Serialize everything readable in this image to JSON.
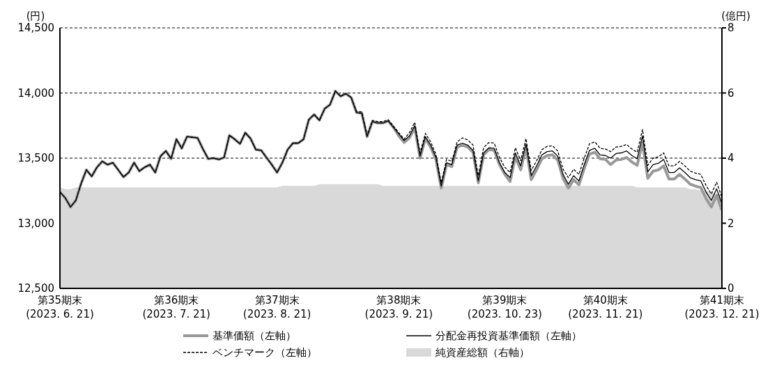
{
  "chart_data": {
    "type": "line",
    "ylabel": "(円)",
    "y2label": "(億円)",
    "categories": [
      "第35期末\n(2023. 6. 21)",
      null,
      null,
      null,
      null,
      null,
      null,
      null,
      null,
      null,
      null,
      null,
      null,
      null,
      null,
      null,
      null,
      null,
      null,
      null,
      null,
      null,
      "第36期末\n(2023. 7. 21)",
      null,
      null,
      null,
      null,
      null,
      null,
      null,
      null,
      null,
      null,
      null,
      null,
      null,
      null,
      null,
      null,
      null,
      null,
      "第37期末\n(2023. 8. 21)",
      null,
      null,
      null,
      null,
      null,
      null,
      null,
      null,
      null,
      null,
      null,
      null,
      null,
      null,
      null,
      null,
      null,
      null,
      null,
      null,
      null,
      null,
      "第38期末\n(2023. 9. 21)",
      null,
      null,
      null,
      null,
      null,
      null,
      null,
      null,
      null,
      null,
      null,
      null,
      null,
      null,
      null,
      null,
      null,
      null,
      null,
      "第39期末\n(2023. 10. 23)",
      null,
      null,
      null,
      null,
      null,
      null,
      null,
      null,
      null,
      null,
      null,
      null,
      null,
      null,
      null,
      null,
      null,
      null,
      "第40期末\n(2023. 11. 21)",
      null,
      null,
      null,
      null,
      null,
      null,
      null,
      null,
      null,
      null,
      null,
      null,
      null,
      null,
      null,
      null,
      null,
      null,
      null,
      null,
      null,
      "第41期末\n(2023. 12. 21)"
    ],
    "series": [
      {
        "name": "基準価額（左軸）",
        "type": "line",
        "color": "#999999",
        "values": [
          13240,
          13195,
          13125,
          13175,
          13305,
          13410,
          13360,
          13430,
          13475,
          13450,
          13465,
          13410,
          13355,
          13390,
          13465,
          13400,
          13430,
          13450,
          13390,
          13515,
          13555,
          13495,
          13645,
          13575,
          13665,
          13660,
          13655,
          13570,
          13495,
          13500,
          13490,
          13505,
          13675,
          13645,
          13610,
          13695,
          13650,
          13565,
          13560,
          13505,
          13450,
          13390,
          13465,
          13565,
          13615,
          13615,
          13645,
          13795,
          13835,
          13790,
          13880,
          13910,
          14015,
          13975,
          13995,
          13965,
          13850,
          13845,
          13665,
          13780,
          13770,
          13770,
          13785,
          13735,
          13670,
          13620,
          13655,
          13735,
          13500,
          13650,
          13585,
          13490,
          13270,
          13450,
          13435,
          13585,
          13600,
          13585,
          13545,
          13310,
          13525,
          13565,
          13560,
          13450,
          13375,
          13320,
          13510,
          13410,
          13580,
          13335,
          13410,
          13495,
          13520,
          13525,
          13485,
          13345,
          13270,
          13335,
          13295,
          13420,
          13530,
          13545,
          13495,
          13490,
          13450,
          13485,
          13490,
          13505,
          13470,
          13445,
          13620,
          13345,
          13400,
          13410,
          13440,
          13340,
          13340,
          13375,
          13340,
          13300,
          13285,
          13275,
          13190,
          13125,
          13215,
          13100
        ]
      },
      {
        "name": "分配金再投資基準価額（左軸）",
        "type": "line",
        "color": "#000000",
        "values": [
          13240,
          13195,
          13125,
          13175,
          13305,
          13410,
          13360,
          13430,
          13475,
          13450,
          13465,
          13410,
          13355,
          13390,
          13465,
          13400,
          13430,
          13450,
          13390,
          13515,
          13555,
          13495,
          13645,
          13575,
          13665,
          13660,
          13655,
          13570,
          13495,
          13500,
          13490,
          13505,
          13675,
          13645,
          13610,
          13695,
          13650,
          13565,
          13560,
          13505,
          13450,
          13390,
          13465,
          13565,
          13615,
          13615,
          13645,
          13795,
          13835,
          13790,
          13880,
          13910,
          14015,
          13975,
          13995,
          13965,
          13850,
          13845,
          13665,
          13780,
          13770,
          13770,
          13785,
          13735,
          13685,
          13635,
          13670,
          13750,
          13515,
          13665,
          13600,
          13505,
          13285,
          13465,
          13450,
          13600,
          13615,
          13600,
          13560,
          13325,
          13540,
          13580,
          13575,
          13465,
          13390,
          13350,
          13540,
          13440,
          13610,
          13365,
          13440,
          13525,
          13550,
          13555,
          13515,
          13375,
          13300,
          13365,
          13325,
          13450,
          13560,
          13575,
          13525,
          13520,
          13500,
          13535,
          13540,
          13555,
          13520,
          13495,
          13670,
          13395,
          13450,
          13460,
          13490,
          13390,
          13390,
          13425,
          13390,
          13350,
          13335,
          13325,
          13240,
          13175,
          13265,
          13150
        ]
      },
      {
        "name": "ベンチマーク（左軸）",
        "type": "line",
        "line_style": "dashed",
        "color": "#000000",
        "values": [
          13240,
          13195,
          13125,
          13175,
          13305,
          13410,
          13360,
          13430,
          13475,
          13450,
          13465,
          13410,
          13355,
          13390,
          13465,
          13400,
          13430,
          13450,
          13390,
          13515,
          13555,
          13495,
          13645,
          13575,
          13665,
          13660,
          13655,
          13570,
          13495,
          13500,
          13490,
          13505,
          13675,
          13645,
          13610,
          13695,
          13650,
          13565,
          13560,
          13505,
          13450,
          13390,
          13465,
          13565,
          13615,
          13615,
          13645,
          13795,
          13835,
          13790,
          13880,
          13910,
          14015,
          13975,
          13995,
          13965,
          13860,
          13855,
          13675,
          13790,
          13780,
          13780,
          13795,
          13745,
          13695,
          13645,
          13695,
          13775,
          13540,
          13690,
          13625,
          13530,
          13310,
          13490,
          13475,
          13625,
          13655,
          13640,
          13600,
          13365,
          13580,
          13620,
          13615,
          13505,
          13430,
          13390,
          13580,
          13480,
          13650,
          13405,
          13480,
          13565,
          13590,
          13595,
          13555,
          13415,
          13350,
          13415,
          13375,
          13500,
          13610,
          13625,
          13575,
          13570,
          13550,
          13585,
          13590,
          13605,
          13570,
          13545,
          13720,
          13445,
          13500,
          13510,
          13540,
          13440,
          13440,
          13475,
          13440,
          13400,
          13385,
          13375,
          13290,
          13225,
          13315,
          13200
        ]
      },
      {
        "name": "純資産総額（右軸）",
        "type": "area",
        "axis": "y2",
        "color": "#d9d9d9",
        "values": [
          3.1,
          3.05,
          3.05,
          3.1,
          3.1,
          3.1,
          3.1,
          3.1,
          3.1,
          3.1,
          3.1,
          3.1,
          3.1,
          3.1,
          3.1,
          3.1,
          3.1,
          3.1,
          3.1,
          3.1,
          3.1,
          3.1,
          3.1,
          3.1,
          3.1,
          3.1,
          3.1,
          3.1,
          3.1,
          3.1,
          3.1,
          3.1,
          3.1,
          3.1,
          3.1,
          3.1,
          3.1,
          3.1,
          3.1,
          3.1,
          3.1,
          3.1,
          3.15,
          3.15,
          3.15,
          3.15,
          3.15,
          3.15,
          3.15,
          3.2,
          3.2,
          3.2,
          3.2,
          3.2,
          3.2,
          3.2,
          3.2,
          3.2,
          3.2,
          3.2,
          3.2,
          3.15,
          3.15,
          3.15,
          3.15,
          3.15,
          3.15,
          3.15,
          3.15,
          3.15,
          3.15,
          3.15,
          3.15,
          3.15,
          3.15,
          3.15,
          3.15,
          3.15,
          3.15,
          3.15,
          3.15,
          3.15,
          3.15,
          3.15,
          3.15,
          3.15,
          3.15,
          3.15,
          3.15,
          3.15,
          3.15,
          3.15,
          3.15,
          3.15,
          3.15,
          3.15,
          3.15,
          3.15,
          3.15,
          3.15,
          3.15,
          3.15,
          3.15,
          3.15,
          3.15,
          3.15,
          3.15,
          3.15,
          3.15,
          3.1,
          3.1,
          3.1,
          3.1,
          3.1,
          3.1,
          3.1,
          3.1,
          3.1,
          3.1,
          3.05,
          3.05,
          3.0,
          3.0,
          2.95,
          2.9,
          2.9
        ]
      }
    ],
    "ylim": [
      12500,
      14500
    ],
    "yticks": [
      {
        "value": 12500,
        "label": "12,500"
      },
      {
        "value": 13000,
        "label": "13,000"
      },
      {
        "value": 13500,
        "label": "13,500"
      },
      {
        "value": 14000,
        "label": "14,000"
      },
      {
        "value": 14500,
        "label": "14,500"
      }
    ],
    "y2lim": [
      0,
      8
    ],
    "y2ticks": [
      0,
      2,
      4,
      6,
      8
    ],
    "grid": "y",
    "legend": "bottom"
  }
}
